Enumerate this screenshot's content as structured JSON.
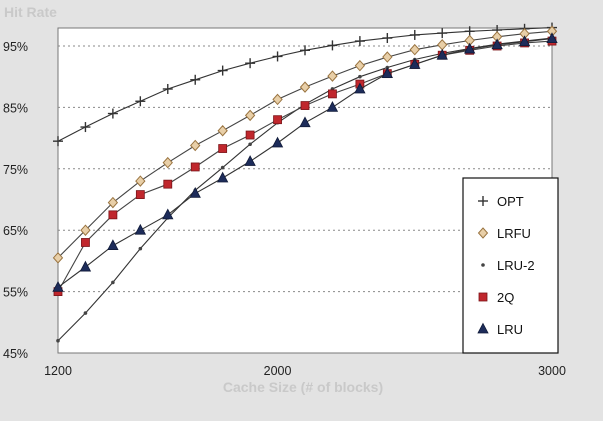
{
  "chart_data": {
    "type": "line",
    "title": "Hit Rate",
    "xlabel": "Cache Size (# of blocks)",
    "ylabel": "",
    "xlim": [
      1200,
      3000
    ],
    "ylim": [
      45,
      98
    ],
    "x_ticks": [
      1200,
      2000,
      3000
    ],
    "x_tick_labels": [
      "1200",
      "2000",
      "3000"
    ],
    "y_ticks": [
      45,
      55,
      65,
      75,
      85,
      95
    ],
    "y_tick_labels": [
      "45%",
      "55%",
      "65%",
      "75%",
      "85%",
      "95%"
    ],
    "grid": "horizontal dotted",
    "legend_position": "right",
    "x": [
      1200,
      1300,
      1400,
      1500,
      1600,
      1700,
      1800,
      1900,
      2000,
      2100,
      2200,
      2300,
      2400,
      2500,
      2600,
      2700,
      2800,
      2900,
      3000
    ],
    "series": [
      {
        "name": "OPT",
        "marker": "plus",
        "color": "#444444",
        "values": [
          79.5,
          81.8,
          84,
          86,
          88,
          89.5,
          91,
          92.2,
          93.3,
          94.3,
          95.1,
          95.8,
          96.3,
          96.8,
          97.1,
          97.4,
          97.6,
          97.8,
          98
        ]
      },
      {
        "name": "LRFU",
        "marker": "diamond",
        "color": "#c9a16e",
        "values": [
          60.5,
          65,
          69.5,
          73,
          76,
          78.8,
          81.2,
          83.7,
          86.3,
          88.3,
          90.1,
          91.8,
          93.2,
          94.4,
          95.2,
          95.9,
          96.5,
          97,
          97.4
        ]
      },
      {
        "name": "LRU-2",
        "marker": "dot",
        "color": "#555555",
        "values": [
          47,
          51.5,
          56.5,
          62,
          67,
          71.5,
          75.2,
          79,
          82.5,
          85.5,
          88,
          90,
          91.5,
          92.8,
          93.8,
          94.6,
          95.3,
          95.8,
          96.3
        ]
      },
      {
        "name": "2Q",
        "marker": "square",
        "color": "#b8232a",
        "values": [
          55,
          63,
          67.5,
          70.8,
          72.5,
          75.3,
          78.3,
          80.5,
          83,
          85.3,
          87.2,
          88.8,
          90.5,
          92,
          93.5,
          94.3,
          95,
          95.5,
          95.8
        ]
      },
      {
        "name": "LRU",
        "marker": "triangle",
        "color": "#1d2c5a",
        "values": [
          55.7,
          59,
          62.5,
          65,
          67.5,
          71,
          73.5,
          76.2,
          79.2,
          82.5,
          85,
          88,
          90.5,
          92,
          93.5,
          94.5,
          95.2,
          95.7,
          96.2
        ]
      }
    ]
  }
}
